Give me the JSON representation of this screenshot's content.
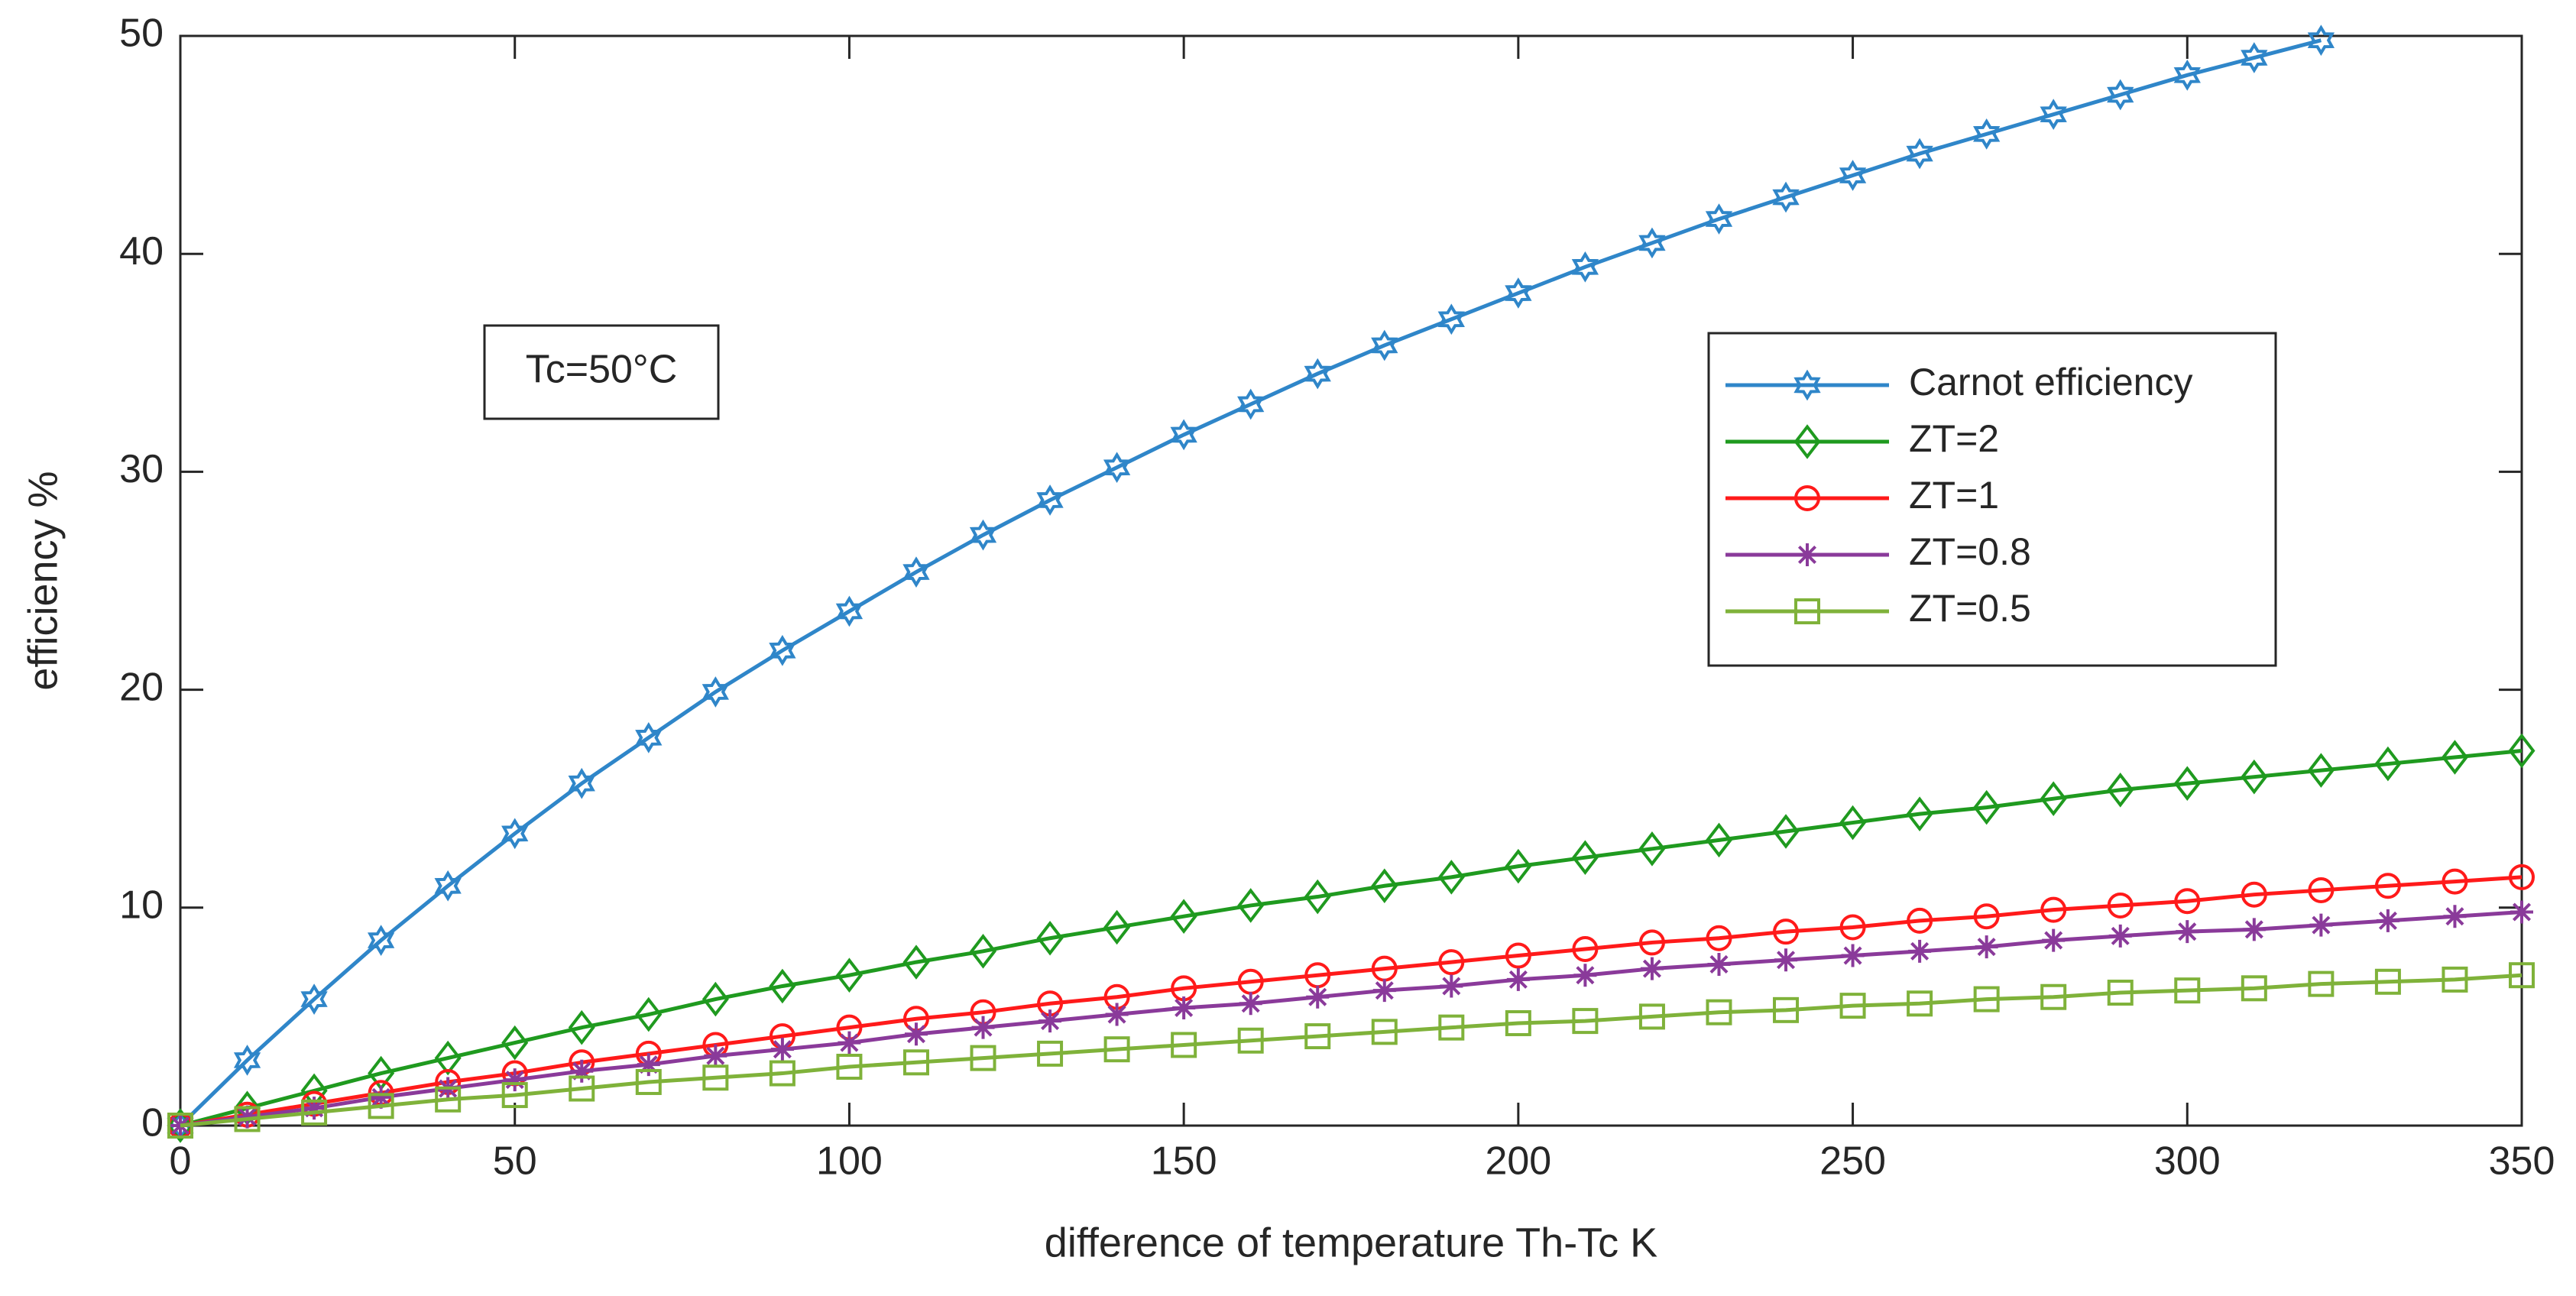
{
  "chart_data": {
    "type": "line",
    "xlabel": "difference of temperature Th-Tc  K",
    "ylabel": "efficiency %",
    "annotation": "Tc=50°C",
    "x": [
      0,
      10,
      20,
      30,
      40,
      50,
      60,
      70,
      80,
      90,
      100,
      110,
      120,
      130,
      140,
      150,
      160,
      170,
      180,
      190,
      200,
      210,
      220,
      230,
      240,
      250,
      260,
      270,
      280,
      290,
      300,
      310,
      320,
      330,
      340,
      350
    ],
    "xlim": [
      0,
      350
    ],
    "xticks": [
      0,
      50,
      100,
      150,
      200,
      250,
      300,
      350
    ],
    "ylim": [
      0,
      50
    ],
    "yticks": [
      0,
      10,
      20,
      30,
      40,
      50
    ],
    "legend": "upper right",
    "series": [
      {
        "name": "Carnot efficiency",
        "color": "#2f86c9",
        "marker": "hexagram",
        "values": [
          0,
          3.0,
          5.8,
          8.5,
          11.0,
          13.4,
          15.7,
          17.8,
          19.9,
          21.8,
          23.6,
          25.4,
          27.1,
          28.7,
          30.2,
          31.7,
          33.1,
          34.5,
          35.8,
          37.0,
          38.2,
          39.4,
          40.5,
          41.6,
          42.6,
          43.6,
          44.6,
          45.5,
          46.4,
          47.3,
          48.2,
          49.0,
          49.8,
          null,
          null,
          null
        ]
      },
      {
        "name": "ZT=2",
        "color": "#1f9a1f",
        "marker": "diamond",
        "values": [
          0,
          0.8,
          1.6,
          2.4,
          3.1,
          3.8,
          4.5,
          5.1,
          5.8,
          6.4,
          6.9,
          7.5,
          8.0,
          8.6,
          9.1,
          9.6,
          10.1,
          10.5,
          11.0,
          11.4,
          11.9,
          12.3,
          12.7,
          13.1,
          13.5,
          13.9,
          14.3,
          14.6,
          15.0,
          15.4,
          15.7,
          16.0,
          16.3,
          16.6,
          16.9,
          17.2
        ]
      },
      {
        "name": "ZT=1",
        "color": "#ff1a1a",
        "marker": "circle",
        "values": [
          0,
          0.5,
          1.0,
          1.5,
          2.0,
          2.4,
          2.9,
          3.3,
          3.7,
          4.1,
          4.5,
          4.9,
          5.2,
          5.6,
          5.9,
          6.3,
          6.6,
          6.9,
          7.2,
          7.5,
          7.8,
          8.1,
          8.4,
          8.6,
          8.9,
          9.1,
          9.4,
          9.6,
          9.9,
          10.1,
          10.3,
          10.6,
          10.8,
          11.0,
          11.2,
          11.4
        ]
      },
      {
        "name": "ZT=0.8",
        "color": "#8a3a9a",
        "marker": "asterisk",
        "values": [
          0,
          0.4,
          0.8,
          1.3,
          1.7,
          2.1,
          2.5,
          2.8,
          3.2,
          3.5,
          3.8,
          4.2,
          4.5,
          4.8,
          5.1,
          5.4,
          5.6,
          5.9,
          6.2,
          6.4,
          6.7,
          6.9,
          7.2,
          7.4,
          7.6,
          7.8,
          8.0,
          8.2,
          8.5,
          8.7,
          8.9,
          9.0,
          9.2,
          9.4,
          9.6,
          9.8
        ]
      },
      {
        "name": "ZT=0.5",
        "color": "#7fb23a",
        "marker": "square",
        "values": [
          0,
          0.3,
          0.6,
          0.9,
          1.2,
          1.4,
          1.7,
          2.0,
          2.2,
          2.4,
          2.7,
          2.9,
          3.1,
          3.3,
          3.5,
          3.7,
          3.9,
          4.1,
          4.3,
          4.5,
          4.7,
          4.8,
          5.0,
          5.2,
          5.3,
          5.5,
          5.6,
          5.8,
          5.9,
          6.1,
          6.2,
          6.3,
          6.5,
          6.6,
          6.7,
          6.9
        ]
      }
    ]
  }
}
